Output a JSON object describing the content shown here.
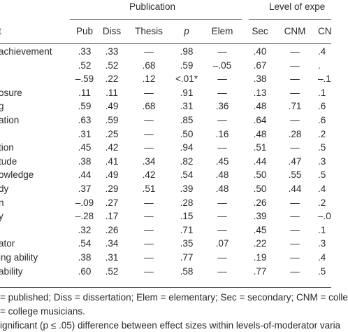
{
  "table": {
    "group_headers": [
      "Publication",
      "Level of expe"
    ],
    "columns": [
      "t",
      "Pub",
      "Diss",
      "Thesis",
      "p",
      "Elem",
      "Sec",
      "CNM",
      "CN"
    ],
    "rows": [
      [
        "achievement",
        ".33",
        ".33",
        "—",
        ".98",
        "—",
        ".40",
        "—",
        ".4"
      ],
      [
        "",
        ".52",
        ".52",
        ".68",
        ".59",
        "–.05",
        ".67",
        "—",
        "."
      ],
      [
        "",
        "–.59",
        ".22",
        ".12",
        "<.01*",
        "—",
        ".38",
        "—",
        "–.1"
      ],
      [
        "osure",
        ".11",
        ".11",
        "—",
        ".91",
        "—",
        ".13",
        "—",
        ".1"
      ],
      [
        "g",
        ".59",
        ".49",
        ".68",
        ".31",
        ".36",
        ".48",
        ".71",
        ".6"
      ],
      [
        "ation",
        ".63",
        ".59",
        "—",
        ".85",
        "—",
        ".64",
        "—",
        ".6"
      ],
      [
        "",
        ".31",
        ".25",
        "—",
        ".50",
        ".16",
        ".48",
        ".28",
        ".2"
      ],
      [
        "tion",
        ".45",
        ".42",
        "—",
        ".94",
        "—",
        ".51",
        "—",
        ".5"
      ],
      [
        "tude",
        ".38",
        ".41",
        ".34",
        ".82",
        ".45",
        ".44",
        ".47",
        ".3"
      ],
      [
        "owledge",
        ".44",
        ".49",
        ".42",
        ".54",
        ".48",
        ".50",
        ".55",
        ".5"
      ],
      [
        "dy",
        ".37",
        ".29",
        ".51",
        ".39",
        ".48",
        ".50",
        ".44",
        ".4"
      ],
      [
        "n",
        "–.09",
        ".27",
        "—",
        ".28",
        "—",
        ".26",
        "—",
        ".2"
      ],
      [
        "y",
        "–.28",
        ".17",
        "—",
        ".15",
        "—",
        ".39",
        "—",
        "–.0"
      ],
      [
        "",
        ".32",
        ".26",
        "—",
        ".71",
        "—",
        ".45",
        "—",
        ".1"
      ],
      [
        "ator",
        ".54",
        ".34",
        "—",
        ".35",
        ".07",
        ".22",
        "—",
        ".3"
      ],
      [
        "ing ability",
        ".38",
        ".31",
        "—",
        ".77",
        "—",
        ".19",
        "—",
        ".4"
      ],
      [
        "ability",
        ".60",
        ".52",
        "—",
        ".58",
        "—",
        ".77",
        "—",
        ".5"
      ]
    ],
    "notes": [
      "= published; Diss = dissertation; Elem = elementary; Sec = secondary; CNM = colle",
      "= college musicians.",
      "ignificant (p ≤ .05) difference between effect sizes within levels-of-moderator varia"
    ]
  }
}
